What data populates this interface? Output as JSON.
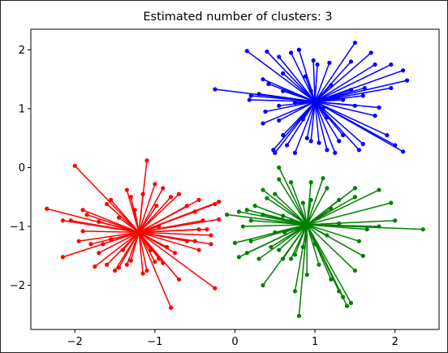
{
  "chart_data": {
    "type": "scatter",
    "title": "Estimated number of clusters: 3",
    "xlabel": "",
    "ylabel": "",
    "xlim": [
      -2.55,
      2.55
    ],
    "ylim": [
      -2.75,
      2.35
    ],
    "xticks": [
      -2,
      -1,
      0,
      1,
      2
    ],
    "yticks": [
      2,
      1,
      0,
      -1,
      -2
    ],
    "xtick_labels": [
      "−2",
      "−1",
      "0",
      "1",
      "2"
    ],
    "ytick_labels": [
      "2",
      "1",
      "0",
      "−1",
      "−2"
    ],
    "grid": false,
    "legend": "none",
    "clusters": [
      {
        "color": "#0000ff",
        "center": [
          1.0,
          1.12
        ],
        "points": [
          [
            -0.25,
            1.33
          ],
          [
            0.15,
            1.98
          ],
          [
            0.4,
            1.97
          ],
          [
            0.55,
            1.88
          ],
          [
            0.7,
            1.95
          ],
          [
            0.8,
            2.0
          ],
          [
            0.98,
            1.82
          ],
          [
            1.03,
            1.75
          ],
          [
            1.18,
            1.78
          ],
          [
            1.5,
            2.12
          ],
          [
            1.45,
            1.8
          ],
          [
            1.7,
            1.95
          ],
          [
            1.75,
            1.75
          ],
          [
            1.95,
            1.75
          ],
          [
            2.1,
            1.65
          ],
          [
            2.15,
            1.48
          ],
          [
            1.95,
            1.35
          ],
          [
            1.62,
            1.35
          ],
          [
            1.45,
            1.32
          ],
          [
            1.6,
            1.22
          ],
          [
            1.35,
            1.15
          ],
          [
            1.5,
            1.05
          ],
          [
            1.8,
            1.02
          ],
          [
            1.75,
            0.88
          ],
          [
            1.9,
            0.55
          ],
          [
            2.0,
            0.38
          ],
          [
            2.1,
            0.27
          ],
          [
            1.6,
            0.4
          ],
          [
            1.55,
            0.3
          ],
          [
            1.35,
            0.55
          ],
          [
            1.3,
            0.45
          ],
          [
            1.25,
            0.25
          ],
          [
            1.15,
            0.3
          ],
          [
            1.05,
            0.42
          ],
          [
            0.95,
            0.45
          ],
          [
            0.9,
            0.5
          ],
          [
            0.75,
            0.25
          ],
          [
            0.65,
            0.38
          ],
          [
            0.5,
            0.25
          ],
          [
            0.48,
            0.3
          ],
          [
            0.6,
            0.55
          ],
          [
            0.35,
            0.75
          ],
          [
            0.38,
            0.95
          ],
          [
            0.55,
            0.8
          ],
          [
            0.55,
            1.05
          ],
          [
            0.2,
            1.22
          ],
          [
            0.3,
            1.25
          ],
          [
            0.18,
            1.15
          ],
          [
            0.35,
            1.5
          ],
          [
            0.42,
            1.42
          ],
          [
            0.6,
            1.3
          ],
          [
            0.75,
            1.1
          ],
          [
            0.85,
            0.82
          ],
          [
            0.95,
            1.3
          ],
          [
            1.1,
            1.0
          ],
          [
            1.2,
            1.4
          ],
          [
            1.15,
            0.85
          ],
          [
            0.88,
            1.55
          ],
          [
            0.6,
            1.6
          ],
          [
            1.28,
            1.2
          ]
        ]
      },
      {
        "color": "#ff0000",
        "center": [
          -1.2,
          -1.1
        ],
        "points": [
          [
            -2.35,
            -0.7
          ],
          [
            -2.0,
            0.03
          ],
          [
            -2.15,
            -0.9
          ],
          [
            -2.05,
            -0.9
          ],
          [
            -1.9,
            -0.72
          ],
          [
            -1.85,
            -0.8
          ],
          [
            -1.95,
            -1.25
          ],
          [
            -2.15,
            -1.52
          ],
          [
            -1.6,
            -0.62
          ],
          [
            -1.55,
            -0.55
          ],
          [
            -1.35,
            -0.38
          ],
          [
            -1.3,
            -0.5
          ],
          [
            -1.15,
            -0.45
          ],
          [
            -1.1,
            0.12
          ],
          [
            -1.0,
            -0.28
          ],
          [
            -0.9,
            -0.35
          ],
          [
            -0.8,
            -0.5
          ],
          [
            -0.7,
            -0.45
          ],
          [
            -0.6,
            -0.65
          ],
          [
            -0.45,
            -0.55
          ],
          [
            -0.2,
            -0.58
          ],
          [
            -0.25,
            -0.62
          ],
          [
            -0.5,
            -0.75
          ],
          [
            -0.4,
            -0.9
          ],
          [
            -0.45,
            -1.05
          ],
          [
            -0.3,
            -1.15
          ],
          [
            -0.35,
            -1.05
          ],
          [
            -0.2,
            -0.88
          ],
          [
            -0.3,
            -1.3
          ],
          [
            -0.5,
            -1.25
          ],
          [
            -0.45,
            -1.4
          ],
          [
            -0.6,
            -1.25
          ],
          [
            -0.75,
            -1.45
          ],
          [
            -0.85,
            -1.35
          ],
          [
            -0.95,
            -1.55
          ],
          [
            -0.9,
            -1.62
          ],
          [
            -0.7,
            -1.9
          ],
          [
            -0.8,
            -2.38
          ],
          [
            -0.25,
            -2.05
          ],
          [
            -1.0,
            -1.6
          ],
          [
            -1.1,
            -1.75
          ],
          [
            -1.15,
            -1.8
          ],
          [
            -1.3,
            -1.58
          ],
          [
            -1.35,
            -1.65
          ],
          [
            -1.5,
            -1.75
          ],
          [
            -1.45,
            -1.7
          ],
          [
            -1.6,
            -1.65
          ],
          [
            -1.75,
            -1.68
          ],
          [
            -1.7,
            -1.45
          ],
          [
            -1.65,
            -1.3
          ],
          [
            -1.55,
            -1.22
          ],
          [
            -1.8,
            -1.3
          ],
          [
            -1.9,
            -1.08
          ],
          [
            -1.7,
            -0.92
          ],
          [
            -1.45,
            -0.85
          ],
          [
            -1.25,
            -0.72
          ],
          [
            -0.98,
            -0.65
          ],
          [
            -0.95,
            -1.0
          ],
          [
            -1.05,
            -1.4
          ],
          [
            -1.4,
            -1.4
          ]
        ]
      },
      {
        "color": "#008000",
        "center": [
          0.9,
          -0.97
        ],
        "points": [
          [
            -0.1,
            -0.8
          ],
          [
            0.0,
            -1.28
          ],
          [
            0.1,
            -1.0
          ],
          [
            0.2,
            -1.25
          ],
          [
            0.05,
            -1.52
          ],
          [
            0.15,
            -1.45
          ],
          [
            0.3,
            -1.55
          ],
          [
            0.35,
            -2.0
          ],
          [
            0.45,
            -1.35
          ],
          [
            0.55,
            -1.4
          ],
          [
            0.6,
            -1.55
          ],
          [
            0.7,
            -1.55
          ],
          [
            0.75,
            -1.48
          ],
          [
            0.75,
            -2.1
          ],
          [
            0.8,
            -2.52
          ],
          [
            0.9,
            -1.82
          ],
          [
            1.0,
            -1.3
          ],
          [
            1.05,
            -1.65
          ],
          [
            1.2,
            -1.9
          ],
          [
            1.3,
            -2.1
          ],
          [
            1.35,
            -2.2
          ],
          [
            1.4,
            -2.35
          ],
          [
            1.45,
            -2.3
          ],
          [
            1.5,
            -1.75
          ],
          [
            1.6,
            -1.5
          ],
          [
            1.55,
            -1.25
          ],
          [
            1.65,
            -1.05
          ],
          [
            1.8,
            -1.0
          ],
          [
            2.0,
            -0.9
          ],
          [
            2.35,
            -1.05
          ],
          [
            1.95,
            -0.6
          ],
          [
            1.8,
            -0.38
          ],
          [
            1.5,
            -0.35
          ],
          [
            1.5,
            -0.5
          ],
          [
            1.3,
            -0.55
          ],
          [
            1.2,
            -0.7
          ],
          [
            1.15,
            -0.35
          ],
          [
            1.1,
            -0.18
          ],
          [
            0.95,
            -0.25
          ],
          [
            0.95,
            -0.55
          ],
          [
            0.85,
            -0.6
          ],
          [
            0.7,
            -0.25
          ],
          [
            0.55,
            0.0
          ],
          [
            0.55,
            -0.2
          ],
          [
            0.5,
            -0.45
          ],
          [
            0.35,
            -0.38
          ],
          [
            0.4,
            -0.52
          ],
          [
            0.25,
            -0.65
          ],
          [
            0.15,
            -0.72
          ],
          [
            0.05,
            -0.75
          ],
          [
            0.2,
            -0.9
          ],
          [
            0.35,
            -0.8
          ],
          [
            0.6,
            -0.82
          ],
          [
            0.62,
            -1.1
          ],
          [
            0.7,
            -0.9
          ],
          [
            1.05,
            -0.85
          ],
          [
            1.15,
            -1.15
          ],
          [
            0.85,
            -1.35
          ],
          [
            0.5,
            -1.1
          ],
          [
            1.3,
            -0.95
          ]
        ]
      }
    ]
  }
}
